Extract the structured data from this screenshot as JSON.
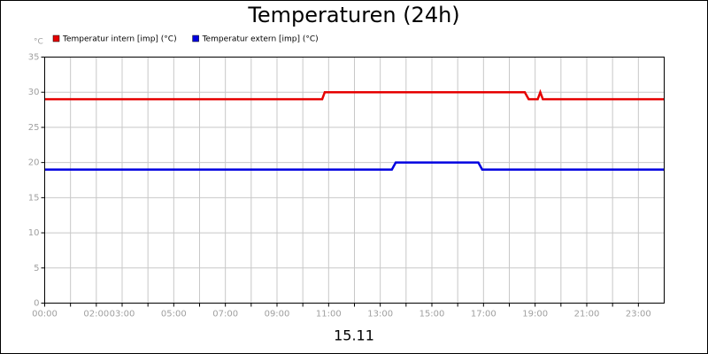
{
  "chart_data": {
    "type": "line",
    "title": "Temperaturen (24h)",
    "y_unit": "°C",
    "x_label": "15.11",
    "series": [
      {
        "name": "Temperatur intern [imp] (°C)",
        "color": "#e60000",
        "x": [
          0,
          10.75,
          10.85,
          18.6,
          18.75,
          19.1,
          19.2,
          19.3,
          24
        ],
        "values": [
          29,
          29,
          30,
          30,
          29,
          29,
          30,
          29,
          29
        ]
      },
      {
        "name": "Temperatur extern [imp] (°C)",
        "color": "#0000e0",
        "x": [
          0,
          13.45,
          13.6,
          16.8,
          16.95,
          24
        ],
        "values": [
          19,
          19,
          20,
          20,
          19,
          19
        ]
      }
    ],
    "xlim": [
      0,
      24
    ],
    "xticks": [
      {
        "value": 0,
        "label": "00:00"
      },
      {
        "value": 1,
        "label": null
      },
      {
        "value": 2,
        "label": "02:00"
      },
      {
        "value": 3,
        "label": "03:00"
      },
      {
        "value": 4,
        "label": null
      },
      {
        "value": 5,
        "label": "05:00"
      },
      {
        "value": 6,
        "label": null
      },
      {
        "value": 7,
        "label": "07:00"
      },
      {
        "value": 8,
        "label": null
      },
      {
        "value": 9,
        "label": "09:00"
      },
      {
        "value": 10,
        "label": null
      },
      {
        "value": 11,
        "label": "11:00"
      },
      {
        "value": 12,
        "label": null
      },
      {
        "value": 13,
        "label": "13:00"
      },
      {
        "value": 14,
        "label": null
      },
      {
        "value": 15,
        "label": "15:00"
      },
      {
        "value": 16,
        "label": null
      },
      {
        "value": 17,
        "label": "17:00"
      },
      {
        "value": 18,
        "label": null
      },
      {
        "value": 19,
        "label": "19:00"
      },
      {
        "value": 20,
        "label": null
      },
      {
        "value": 21,
        "label": "21:00"
      },
      {
        "value": 22,
        "label": null
      },
      {
        "value": 23,
        "label": "23:00"
      }
    ],
    "ylim": [
      0,
      35
    ],
    "yticks": [
      0,
      5,
      10,
      15,
      20,
      25,
      30,
      35
    ],
    "grid": true
  }
}
